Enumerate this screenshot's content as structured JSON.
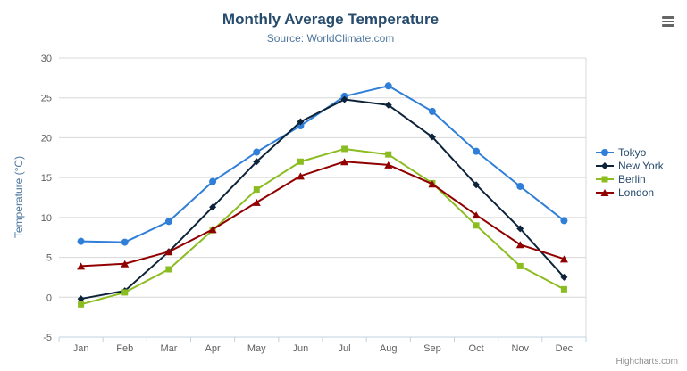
{
  "chart_data": {
    "type": "line",
    "title": "Monthly Average Temperature",
    "subtitle": "Source: WorldClimate.com",
    "ylabel": "Temperature (°C)",
    "xlabel": "",
    "categories": [
      "Jan",
      "Feb",
      "Mar",
      "Apr",
      "May",
      "Jun",
      "Jul",
      "Aug",
      "Sep",
      "Oct",
      "Nov",
      "Dec"
    ],
    "ylim": [
      -5,
      30
    ],
    "y_tick_interval": 5,
    "grid": true,
    "legend_position": "right-middle",
    "series": [
      {
        "name": "Tokyo",
        "color": "#2f7ed8",
        "marker": "circle",
        "values": [
          7.0,
          6.9,
          9.5,
          14.5,
          18.2,
          21.5,
          25.2,
          26.5,
          23.3,
          18.3,
          13.9,
          9.6
        ]
      },
      {
        "name": "New York",
        "color": "#0d233a",
        "marker": "diamond",
        "values": [
          -0.2,
          0.8,
          5.7,
          11.3,
          17.0,
          22.0,
          24.8,
          24.1,
          20.1,
          14.1,
          8.6,
          2.5
        ]
      },
      {
        "name": "Berlin",
        "color": "#8bbc21",
        "marker": "square",
        "values": [
          -0.9,
          0.6,
          3.5,
          8.4,
          13.5,
          17.0,
          18.6,
          17.9,
          14.3,
          9.0,
          3.9,
          1.0
        ]
      },
      {
        "name": "London",
        "color": "#910000",
        "marker": "triangle",
        "values": [
          3.9,
          4.2,
          5.7,
          8.5,
          11.9,
          15.2,
          17.0,
          16.6,
          14.2,
          10.3,
          6.6,
          4.8
        ]
      }
    ],
    "credits": "Highcharts.com",
    "colors": {
      "gridline": "#D8D8D8",
      "axis_line": "#C0D0E0",
      "tick_label": "#606060"
    }
  }
}
